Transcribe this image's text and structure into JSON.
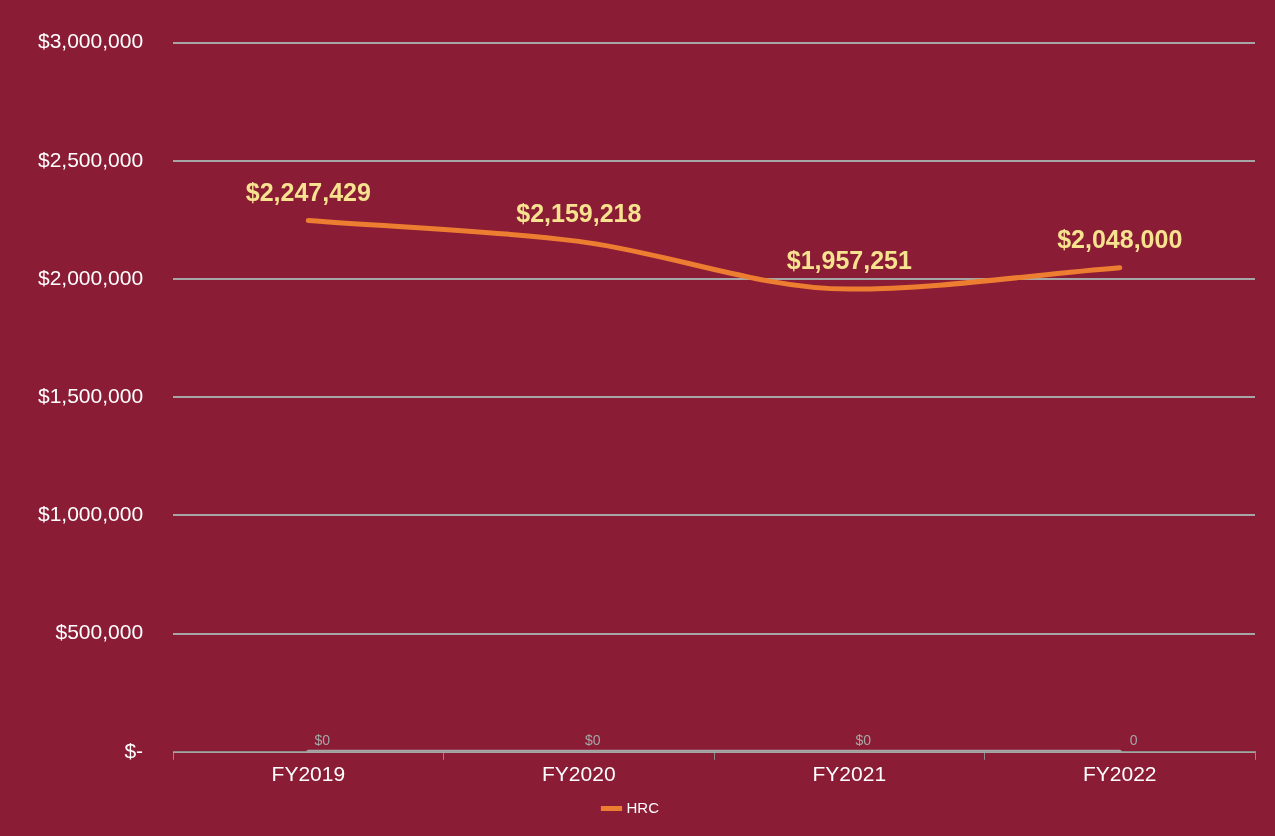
{
  "chart_data": {
    "type": "line",
    "categories": [
      "FY2019",
      "FY2020",
      "FY2021",
      "FY2022"
    ],
    "series": [
      {
        "name": "HRC",
        "color": "#ed7d31",
        "values": [
          2247429,
          2159218,
          1957251,
          2048000
        ],
        "value_labels": [
          "$2,247,429",
          "$2,159,218",
          "$1,957,251",
          "$2,048,000"
        ]
      },
      {
        "color": "#a6a6a6",
        "values": [
          0,
          0,
          0,
          0
        ],
        "value_labels": [
          "$0",
          "$0",
          "$0",
          "0"
        ]
      }
    ],
    "ylim": [
      0,
      3000000
    ],
    "yticks": [
      {
        "value": 0,
        "label": "$-"
      },
      {
        "value": 500000,
        "label": "$500,000"
      },
      {
        "value": 1000000,
        "label": "$1,000,000"
      },
      {
        "value": 1500000,
        "label": "$1,500,000"
      },
      {
        "value": 2000000,
        "label": "$2,000,000"
      },
      {
        "value": 2500000,
        "label": "$2,500,000"
      },
      {
        "value": 3000000,
        "label": "$3,000,000"
      }
    ],
    "grid": "y",
    "legend": "bottom",
    "marker": "none",
    "line_style": "solid"
  }
}
